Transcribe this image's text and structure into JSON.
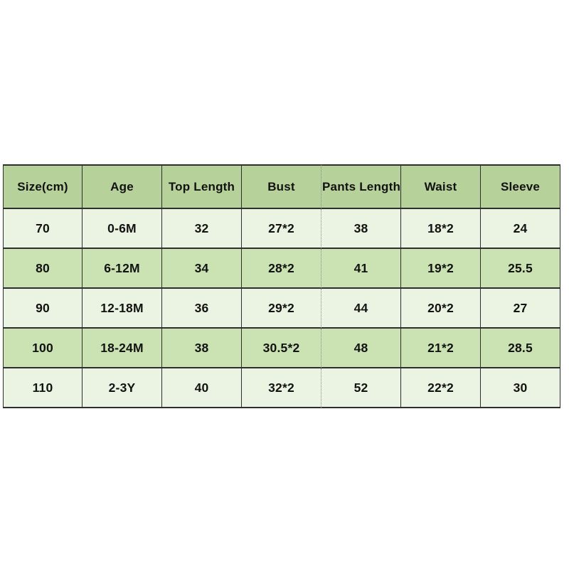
{
  "chart_data": {
    "type": "table",
    "columns": [
      "Size(cm)",
      "Age",
      "Top Length",
      "Bust",
      "Pants Length",
      "Waist",
      "Sleeve"
    ],
    "rows": [
      [
        "70",
        "0-6M",
        "32",
        "27*2",
        "38",
        "18*2",
        "24"
      ],
      [
        "80",
        "6-12M",
        "34",
        "28*2",
        "41",
        "19*2",
        "25.5"
      ],
      [
        "90",
        "12-18M",
        "36",
        "29*2",
        "44",
        "20*2",
        "27"
      ],
      [
        "100",
        "18-24M",
        "38",
        "30.5*2",
        "48",
        "21*2",
        "28.5"
      ],
      [
        "110",
        "2-3Y",
        "40",
        "32*2",
        "52",
        "22*2",
        "30"
      ]
    ]
  },
  "colors": {
    "page_bg": "#ffffff",
    "header_bg": "#b6d199",
    "row_green": "#cbe2b3",
    "row_light": "#ebf3e2",
    "border": "#2e2e2e",
    "dotted_divider": "#8a8a8a",
    "text": "#121212"
  }
}
